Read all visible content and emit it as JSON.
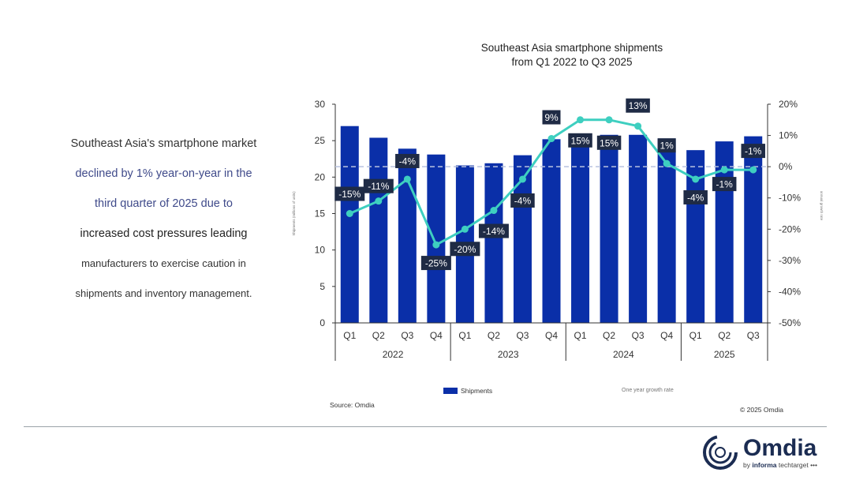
{
  "summary": {
    "lines": [
      "Southeast Asia's smartphone market",
      "declined by 1% year-on-year in the",
      "third quarter of 2025 due to",
      "increased cost pressures leading",
      "manufacturers to exercise caution in",
      "shipments and inventory management."
    ]
  },
  "chart_data": {
    "type": "bar",
    "title_lines": [
      "Southeast Asia smartphone shipments",
      "from Q1 2022 to Q3 2025"
    ],
    "categories": [
      "Q1",
      "Q2",
      "Q3",
      "Q4",
      "Q1",
      "Q2",
      "Q3",
      "Q4",
      "Q1",
      "Q2",
      "Q3",
      "Q4",
      "Q1",
      "Q2",
      "Q3"
    ],
    "years": [
      {
        "label": "2022",
        "span": 4
      },
      {
        "label": "2023",
        "span": 4
      },
      {
        "label": "2024",
        "span": 4
      },
      {
        "label": "2025",
        "span": 3
      }
    ],
    "series": [
      {
        "name": "Shipments",
        "type": "bar",
        "axis": "left",
        "color": "#0a2fa8",
        "values": [
          27.0,
          25.4,
          23.9,
          23.1,
          21.6,
          21.9,
          23.0,
          25.2,
          25.8,
          25.8,
          25.8,
          25.3,
          23.7,
          24.9,
          25.6
        ]
      },
      {
        "name": "One year growth rate",
        "type": "line",
        "axis": "right",
        "color": "#3ecfc0",
        "values": [
          -15,
          -11,
          -4,
          -25,
          -20,
          -14,
          -4,
          9,
          15,
          15,
          13,
          1,
          -4,
          -1,
          -1
        ],
        "labels": [
          "-15%",
          "-11%",
          "-4%",
          "-25%",
          "-20%",
          "-14%",
          "-4%",
          "9%",
          "15%",
          "15%",
          "13%",
          "1%",
          "-4%",
          "-1%",
          "-1%"
        ]
      }
    ],
    "ylabel": "Shipments (millions of units)",
    "y2label": "annual growth rate",
    "ylim": [
      0,
      30
    ],
    "yticks": [
      "0",
      "5",
      "10",
      "15",
      "20",
      "25",
      "30"
    ],
    "y2lim": [
      -50,
      20
    ],
    "y2ticks": [
      "-50%",
      "-40%",
      "-30%",
      "-20%",
      "-10%",
      "0%",
      "10%",
      "20%"
    ],
    "legend": "bottom"
  },
  "footer": {
    "source": "Source: Omdia",
    "copyright": "© 2025 Omdia",
    "logo_word": "Omdia",
    "logo_by": "by",
    "logo_informa": "informa",
    "logo_techtarget": "techtarget •••"
  }
}
